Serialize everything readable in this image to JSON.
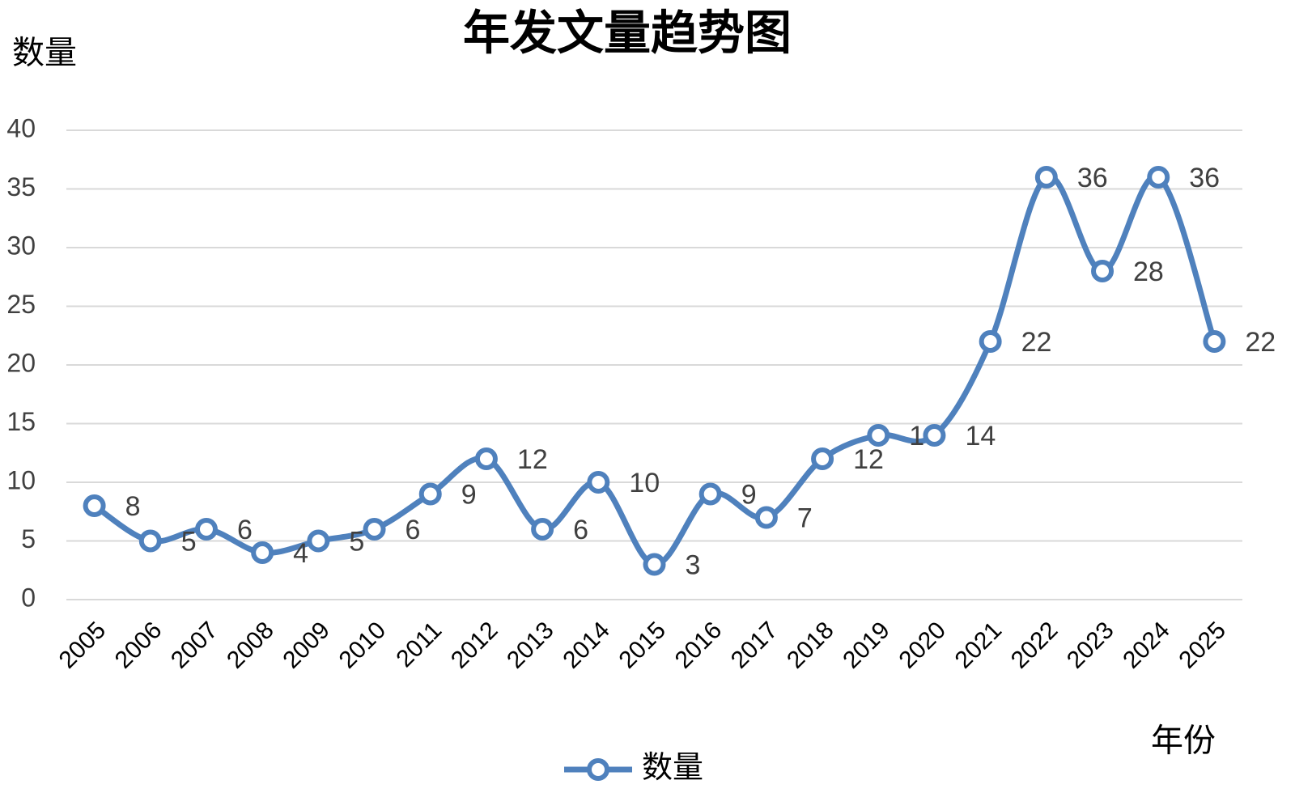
{
  "chart_data": {
    "type": "line",
    "title": "年发文量趋势图",
    "y_label": "数量",
    "x_label": "年份",
    "categories": [
      "2005",
      "2006",
      "2007",
      "2008",
      "2009",
      "2010",
      "2011",
      "2012",
      "2013",
      "2014",
      "2015",
      "2016",
      "2017",
      "2018",
      "2019",
      "2020",
      "2021",
      "2022",
      "2023",
      "2024",
      "2025"
    ],
    "series": [
      {
        "name": "数量",
        "color": "#4f81bd",
        "values": [
          8,
          5,
          6,
          4,
          5,
          6,
          9,
          12,
          6,
          10,
          3,
          9,
          7,
          12,
          14,
          14,
          22,
          36,
          28,
          36,
          22
        ]
      }
    ],
    "ylim": [
      0,
      40
    ],
    "yticks": [
      0,
      5,
      10,
      15,
      20,
      25,
      30,
      35,
      40
    ],
    "grid": true,
    "legend": "bottom",
    "smooth": true
  }
}
